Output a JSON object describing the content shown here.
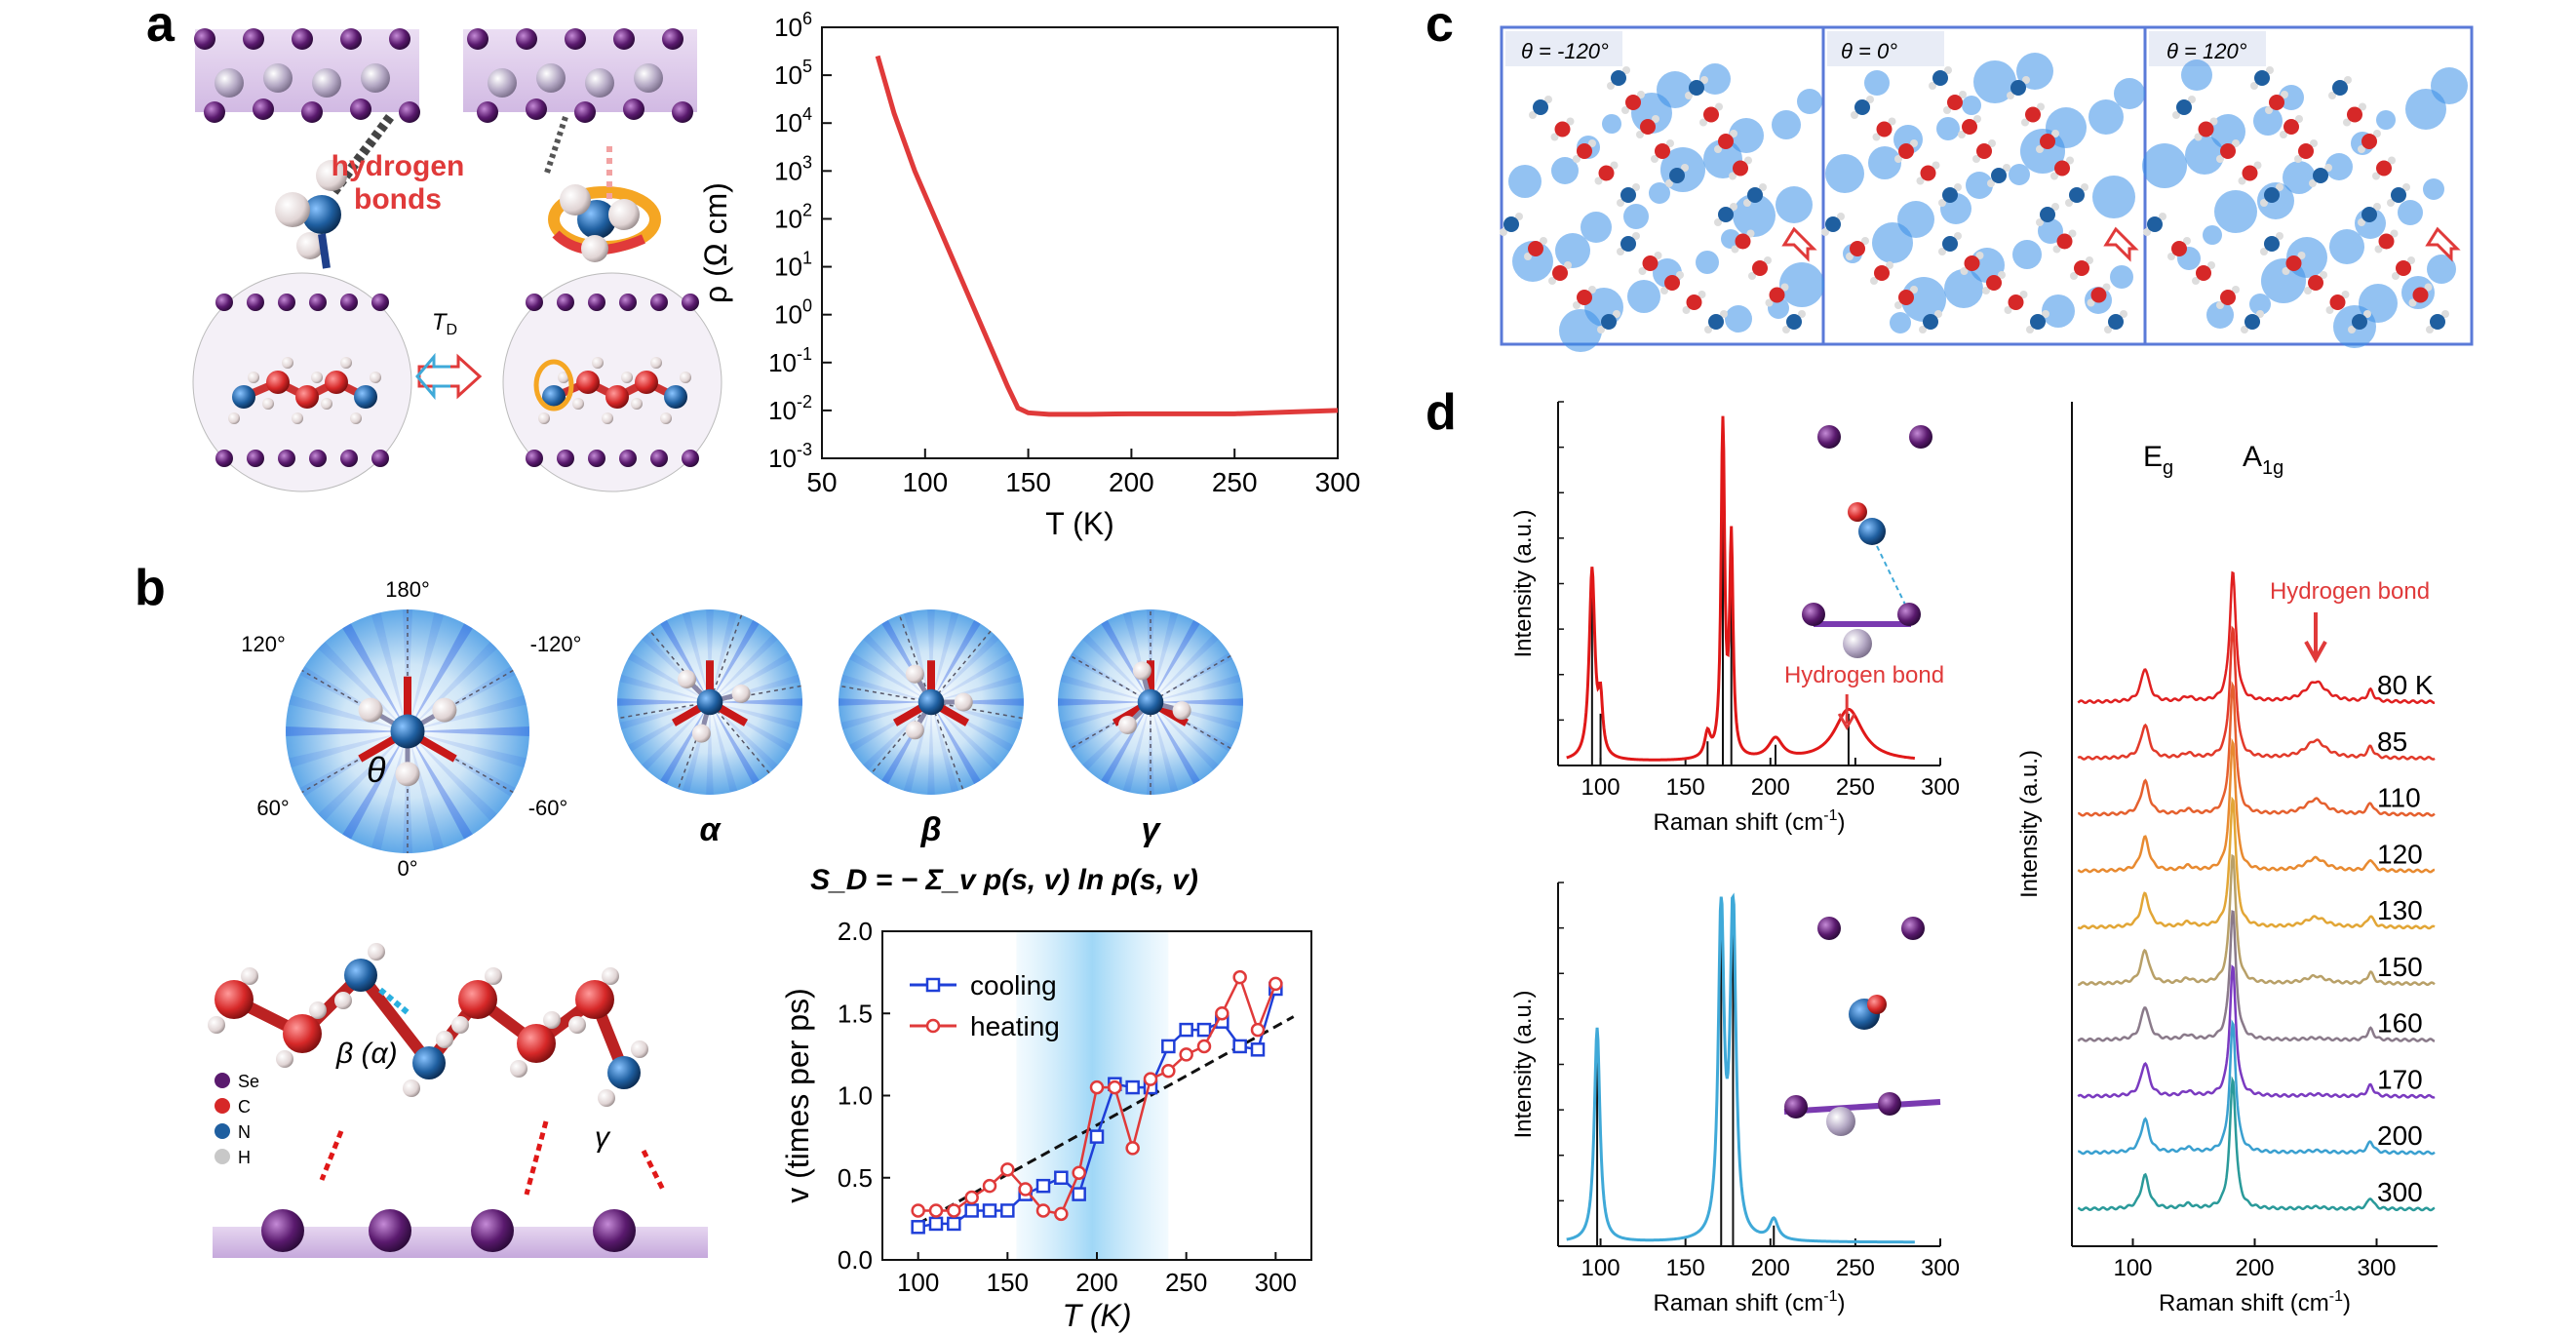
{
  "panel_labels": {
    "a": "a",
    "b": "b",
    "c": "c",
    "d": "d"
  },
  "panel_a": {
    "hydrogen_bonds_label": "hydrogen\nbonds",
    "hb_line1": "hydrogen",
    "hb_line2": "bonds",
    "td_label": "T",
    "td_sub": "D"
  },
  "panel_b": {
    "angles": [
      "180°",
      "120°",
      "-120°",
      "60°",
      "-60°",
      "0°"
    ],
    "theta_symbol": "θ",
    "conformers": [
      "α",
      "β",
      "γ"
    ],
    "entropy_formula": "S_D = − Σ_v p(s, v) ln p(s, v)",
    "legend_atoms": [
      "Se",
      "C",
      "N",
      "H"
    ],
    "site_labels": [
      "β (α)",
      "γ"
    ]
  },
  "panel_c": {
    "angles": [
      "θ = -120°",
      "θ =  0°",
      "θ = 120°"
    ]
  },
  "panel_d": {
    "hydrogen_bond_label": "Hydrogen bond",
    "mode_labels": [
      "E",
      "A"
    ],
    "mode_subs": [
      "g",
      "1g"
    ],
    "temperatures": [
      "80 K",
      "85",
      "110",
      "120",
      "130",
      "150",
      "160",
      "170",
      "200",
      "300"
    ]
  },
  "colors": {
    "red": "#e03a3a",
    "blue": "#1f3fd8",
    "dark": "#111111",
    "light_blue": "#3fa9d8",
    "se_purple": "#5a1a6e",
    "c_red": "#d62828",
    "n_blue": "#1f5fa0",
    "h_gray": "#c8c8c8"
  },
  "chart_data": [
    {
      "id": "resistivity",
      "type": "line",
      "xlabel": "T (K)",
      "ylabel": "ρ (Ω cm)",
      "xlim": [
        50,
        300
      ],
      "ylim_log10": [
        -3,
        6
      ],
      "xticks": [
        "50",
        "100",
        "150",
        "200",
        "250",
        "300"
      ],
      "yticks": [
        "10^-3",
        "10^-2",
        "10^-1",
        "10^0",
        "10^1",
        "10^2",
        "10^3",
        "10^4",
        "10^5",
        "10^6"
      ],
      "series": [
        {
          "x": [
            77,
            85,
            95,
            105,
            115,
            125,
            135,
            140,
            145,
            150,
            160,
            180,
            200,
            250,
            300
          ],
          "y_log10": [
            5.4,
            4.2,
            3.0,
            2.0,
            1.0,
            0.0,
            -1.0,
            -1.5,
            -1.95,
            -2.05,
            -2.08,
            -2.08,
            -2.07,
            -2.07,
            -2.0
          ]
        }
      ]
    },
    {
      "id": "switching-rate",
      "type": "line",
      "xlabel": "T (K)",
      "ylabel": "v (times per ps)",
      "xlim": [
        80,
        320
      ],
      "ylim": [
        0,
        2.0
      ],
      "xticks": [
        "100",
        "150",
        "200",
        "250",
        "300"
      ],
      "yticks": [
        "0.0",
        "0.5",
        "1.0",
        "1.5",
        "2.0"
      ],
      "shaded_x": [
        155,
        240
      ],
      "series": [
        {
          "name": "cooling",
          "x": [
            100,
            110,
            120,
            130,
            140,
            150,
            160,
            170,
            180,
            190,
            200,
            210,
            220,
            230,
            240,
            250,
            260,
            270,
            280,
            290,
            300
          ],
          "y": [
            0.2,
            0.22,
            0.22,
            0.3,
            0.3,
            0.3,
            0.4,
            0.45,
            0.5,
            0.4,
            0.75,
            1.07,
            1.05,
            1.05,
            1.3,
            1.4,
            1.4,
            1.45,
            1.3,
            1.28,
            1.65
          ]
        },
        {
          "name": "heating",
          "x": [
            100,
            110,
            120,
            130,
            140,
            150,
            160,
            170,
            180,
            190,
            200,
            210,
            220,
            230,
            240,
            250,
            260,
            270,
            280,
            290,
            300
          ],
          "y": [
            0.3,
            0.3,
            0.3,
            0.38,
            0.45,
            0.55,
            0.43,
            0.3,
            0.28,
            0.53,
            1.05,
            1.05,
            0.68,
            1.1,
            1.15,
            1.25,
            1.3,
            1.5,
            1.72,
            1.4,
            1.68
          ]
        }
      ],
      "fit_line": {
        "x": [
          100,
          310
        ],
        "y": [
          0.22,
          1.48
        ]
      }
    },
    {
      "id": "raman-sim-top",
      "type": "line",
      "xlabel": "Raman shift (cm-1)",
      "ylabel": "Intensity (a.u.)",
      "xlim": [
        75,
        300
      ],
      "xticks": [
        "100",
        "150",
        "200",
        "250",
        "300"
      ],
      "annotation": "Hydrogen bond",
      "annotation_x": 245
    },
    {
      "id": "raman-sim-bottom",
      "type": "line",
      "xlabel": "Raman shift (cm-1)",
      "ylabel": "Intensity (a.u.)",
      "xlim": [
        75,
        300
      ],
      "xticks": [
        "100",
        "150",
        "200",
        "250",
        "300"
      ]
    },
    {
      "id": "raman-exp",
      "type": "line",
      "xlabel": "Raman shift (cm-1)",
      "ylabel": "Intensity (a.u.)",
      "xlim": [
        50,
        350
      ],
      "xticks": [
        "100",
        "200",
        "300"
      ],
      "series_names": [
        "80 K",
        "85",
        "110",
        "120",
        "130",
        "150",
        "160",
        "170",
        "200",
        "300"
      ],
      "series_colors": [
        "#e02020",
        "#e23a2a",
        "#e5602e",
        "#e88a30",
        "#e2a636",
        "#b8a068",
        "#8a7a8a",
        "#7a3ac0",
        "#3aa0d0",
        "#2a9a9a"
      ],
      "peaks": [
        110,
        180,
        250,
        295
      ]
    }
  ]
}
